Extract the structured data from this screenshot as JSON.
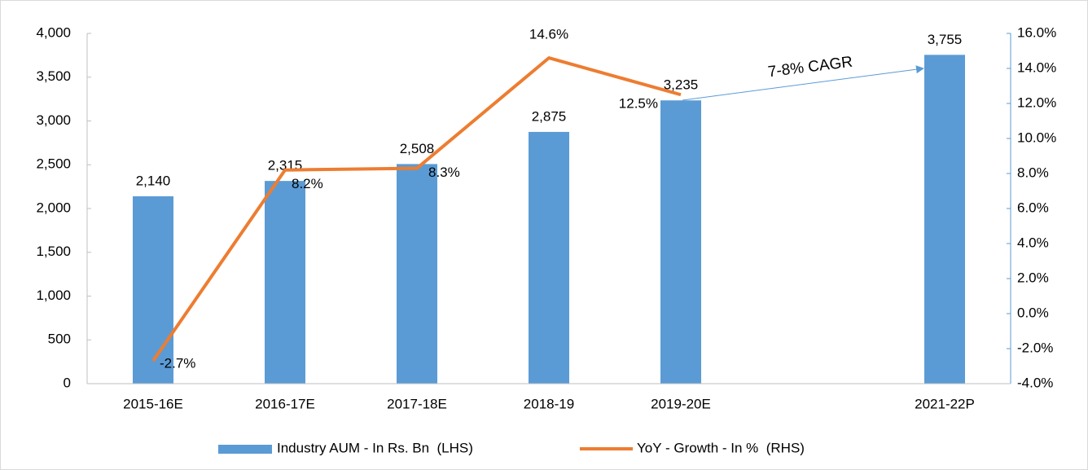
{
  "chart_data": {
    "type": "bar_line",
    "categories": [
      "2015-16E",
      "2016-17E",
      "2017-18E",
      "2018-19",
      "2019-20E",
      null,
      "2021-22P"
    ],
    "series": [
      {
        "name": "Industry AUM - In Rs. Bn  (LHS)",
        "color": "#5b9bd5",
        "type": "bar",
        "values": [
          2140,
          2315,
          2508,
          2875,
          3235,
          null,
          3755
        ],
        "value_labels": [
          "2,140",
          "2,315",
          "2,508",
          "2,875",
          "3,235",
          null,
          "3,755"
        ]
      },
      {
        "name": "YoY - Growth - In %  (RHS)",
        "color": "#ed7d31",
        "type": "line",
        "axis": "y2",
        "values": [
          -2.7,
          8.2,
          8.3,
          14.6,
          12.5,
          null,
          null
        ],
        "value_labels": [
          "-2.7%",
          "8.2%",
          "8.3%",
          "14.6%",
          "12.5%",
          null,
          null
        ]
      }
    ],
    "ylim": [
      0,
      4000
    ],
    "yticks": [
      0,
      500,
      {
        "value": 1000,
        "label": "1,000"
      },
      {
        "value": 1500,
        "label": "1,500"
      },
      {
        "value": 2000,
        "label": "2,000"
      },
      {
        "value": 2500,
        "label": "2,500"
      },
      {
        "value": 3000,
        "label": "3,000"
      },
      {
        "value": 3500,
        "label": "3,500"
      },
      {
        "value": 4000,
        "label": "4,000"
      }
    ],
    "y2lim": [
      -4,
      16
    ],
    "y2ticks": [
      {
        "value": -4,
        "label": "-4.0%"
      },
      {
        "value": -2,
        "label": "-2.0%"
      },
      {
        "value": 0,
        "label": "0.0%"
      },
      {
        "value": 2,
        "label": "2.0%"
      },
      {
        "value": 4,
        "label": "4.0%"
      },
      {
        "value": 6,
        "label": "6.0%"
      },
      {
        "value": 8,
        "label": "8.0%"
      },
      {
        "value": 10,
        "label": "10.0%"
      },
      {
        "value": 12,
        "label": "12.0%"
      },
      {
        "value": 14,
        "label": "14.0%"
      },
      {
        "value": 16,
        "label": "16.0%"
      }
    ],
    "annotations": [
      "7-8% CAGR"
    ],
    "legend": "bottom"
  }
}
